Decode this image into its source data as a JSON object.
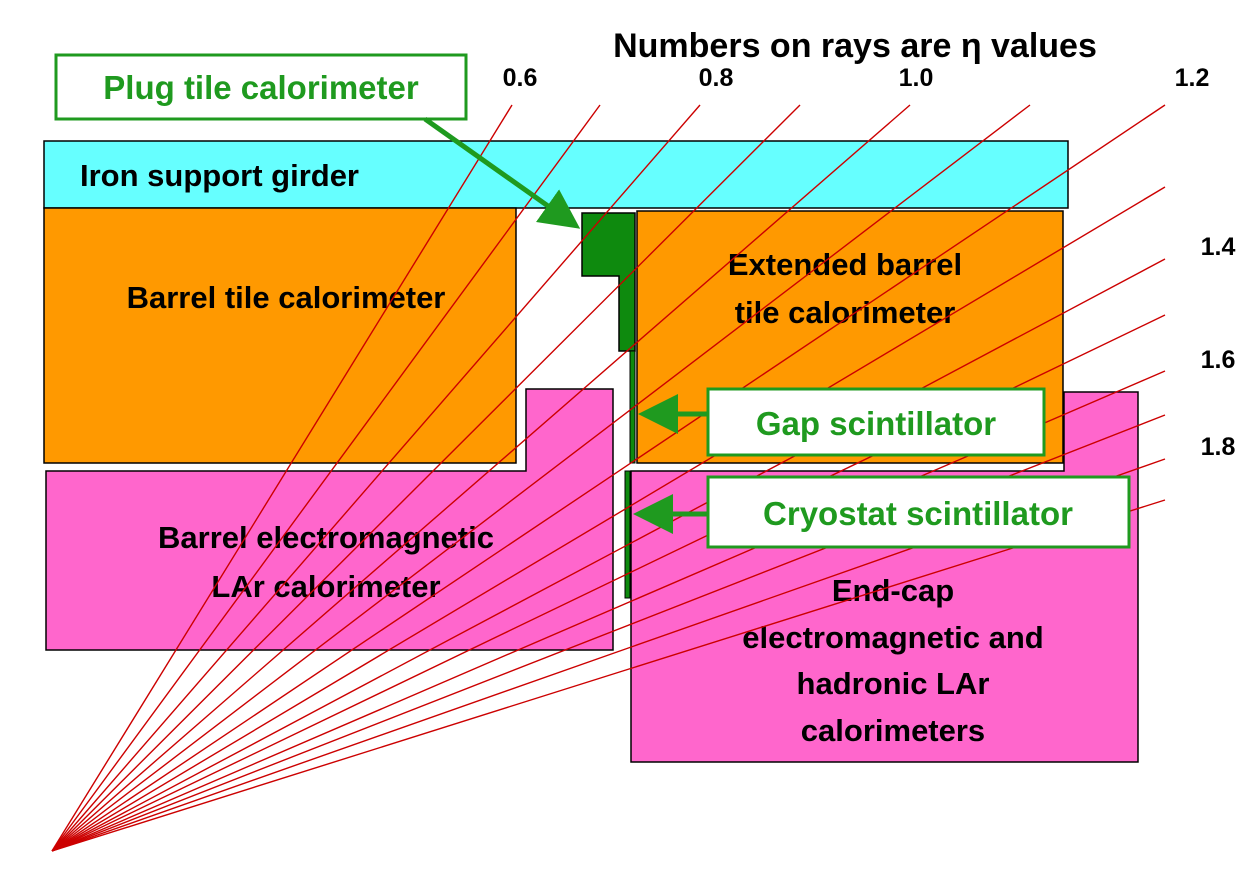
{
  "title": "Numbers on rays are η values",
  "colors": {
    "iron": "#66ffff",
    "tile": "#ff9900",
    "lar": "#ff66cc",
    "green": "#1f9a1f",
    "plug": "#0e8a0e",
    "ray": "#cc0000",
    "outline": "#000000"
  },
  "regions": {
    "iron_girder": "Iron support girder",
    "barrel_tile": "Barrel tile calorimeter",
    "extended_barrel": [
      "Extended barrel",
      "tile calorimeter"
    ],
    "barrel_em": [
      "Barrel electromagnetic",
      "LAr calorimeter"
    ],
    "endcap": [
      "End-cap",
      "electromagnetic and",
      "hadronic LAr",
      "calorimeters"
    ]
  },
  "callouts": {
    "plug": "Plug tile calorimeter",
    "gap": "Gap scintillator",
    "cryostat": "Cryostat scintillator"
  },
  "eta_labels": [
    "0.6",
    "0.8",
    "1.0",
    "1.2",
    "1.4",
    "1.6",
    "1.8"
  ]
}
